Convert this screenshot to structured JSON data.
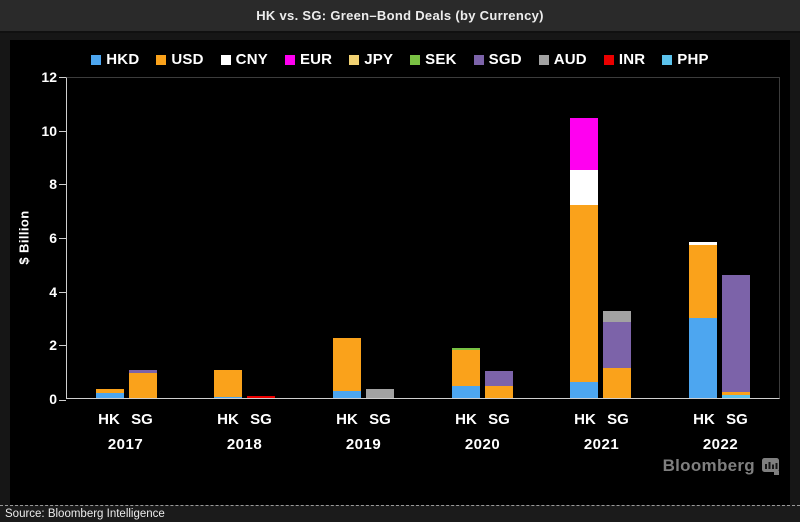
{
  "header": {
    "title": "HK vs. SG: Green–Bond Deals (by Currency)"
  },
  "chart_data": {
    "type": "bar",
    "stacked": true,
    "title": "HK vs. SG: Green–Bond Deals (by Currency)",
    "xlabel": "",
    "ylabel": "$ Billion",
    "ylim": [
      0,
      12
    ],
    "yticks": [
      0,
      2,
      4,
      6,
      8,
      10,
      12
    ],
    "grid": false,
    "legend_position": "top",
    "legend": [
      "HKD",
      "USD",
      "CNY",
      "EUR",
      "JPY",
      "SEK",
      "SGD",
      "AUD",
      "INR",
      "PHP"
    ],
    "colors": {
      "HKD": "#4DA6F0",
      "USD": "#FAA21B",
      "CNY": "#FFFFFF",
      "EUR": "#FF00F0",
      "JPY": "#F2D272",
      "SEK": "#79C143",
      "SGD": "#7C63A9",
      "AUD": "#A2A2A2",
      "INR": "#EB0000",
      "PHP": "#5BC2EC"
    },
    "groups": [
      {
        "year": "2017",
        "bars": [
          {
            "label": "HK",
            "segments": [
              {
                "currency": "HKD",
                "value": 0.2
              },
              {
                "currency": "USD",
                "value": 0.15
              }
            ]
          },
          {
            "label": "SG",
            "segments": [
              {
                "currency": "USD",
                "value": 0.95
              },
              {
                "currency": "SGD",
                "value": 0.1
              }
            ]
          }
        ]
      },
      {
        "year": "2018",
        "bars": [
          {
            "label": "HK",
            "segments": [
              {
                "currency": "HKD",
                "value": 0.05
              },
              {
                "currency": "USD",
                "value": 1.0
              }
            ]
          },
          {
            "label": "SG",
            "segments": [
              {
                "currency": "INR",
                "value": 0.07
              }
            ]
          }
        ]
      },
      {
        "year": "2019",
        "bars": [
          {
            "label": "HK",
            "segments": [
              {
                "currency": "HKD",
                "value": 0.25
              },
              {
                "currency": "USD",
                "value": 2.0
              }
            ]
          },
          {
            "label": "SG",
            "segments": [
              {
                "currency": "AUD",
                "value": 0.35
              }
            ]
          }
        ]
      },
      {
        "year": "2020",
        "bars": [
          {
            "label": "HK",
            "segments": [
              {
                "currency": "HKD",
                "value": 0.45
              },
              {
                "currency": "USD",
                "value": 1.35
              },
              {
                "currency": "SEK",
                "value": 0.07
              }
            ]
          },
          {
            "label": "SG",
            "segments": [
              {
                "currency": "USD",
                "value": 0.45
              },
              {
                "currency": "SGD",
                "value": 0.55
              }
            ]
          }
        ]
      },
      {
        "year": "2021",
        "bars": [
          {
            "label": "HK",
            "segments": [
              {
                "currency": "HKD",
                "value": 0.6
              },
              {
                "currency": "USD",
                "value": 6.6
              },
              {
                "currency": "CNY",
                "value": 1.3
              },
              {
                "currency": "EUR",
                "value": 1.95
              }
            ]
          },
          {
            "label": "SG",
            "segments": [
              {
                "currency": "USD",
                "value": 1.1
              },
              {
                "currency": "SGD",
                "value": 1.75
              },
              {
                "currency": "AUD",
                "value": 0.4
              }
            ]
          }
        ]
      },
      {
        "year": "2022",
        "bars": [
          {
            "label": "HK",
            "segments": [
              {
                "currency": "HKD",
                "value": 3.0
              },
              {
                "currency": "USD",
                "value": 2.7
              },
              {
                "currency": "CNY",
                "value": 0.1
              }
            ]
          },
          {
            "label": "SG",
            "segments": [
              {
                "currency": "PHP",
                "value": 0.12
              },
              {
                "currency": "USD",
                "value": 0.1
              },
              {
                "currency": "SGD",
                "value": 4.35
              }
            ]
          }
        ]
      }
    ]
  },
  "brand": {
    "label": "Bloomberg",
    "icon": "bloomberg-terminal-icon",
    "color": "#7F7F7F"
  },
  "footer": {
    "source": "Source: Bloomberg Intelligence"
  },
  "colors": {
    "page_bg": "#161616",
    "header_bg": "#2A2A2A",
    "panel_bg": "#000000",
    "footer_bg": "#1B1B1B",
    "axis": "#CFCFCF",
    "frame": "#3C3C3C",
    "text": "#FFFFFF"
  }
}
